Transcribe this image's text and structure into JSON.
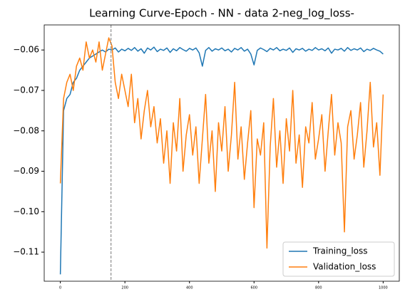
{
  "chart_data": {
    "type": "line",
    "title": "Learning Curve-Epoch - NN - data 2-neg_log_loss-",
    "x": [
      0,
      10,
      20,
      30,
      40,
      50,
      60,
      70,
      80,
      90,
      100,
      110,
      120,
      130,
      140,
      150,
      160,
      170,
      180,
      190,
      200,
      210,
      220,
      230,
      240,
      250,
      260,
      270,
      280,
      290,
      300,
      310,
      320,
      330,
      340,
      350,
      360,
      370,
      380,
      390,
      400,
      410,
      420,
      430,
      440,
      450,
      460,
      470,
      480,
      490,
      500,
      510,
      520,
      530,
      540,
      550,
      560,
      570,
      580,
      590,
      600,
      610,
      620,
      630,
      640,
      650,
      660,
      670,
      680,
      690,
      700,
      710,
      720,
      730,
      740,
      750,
      760,
      770,
      780,
      790,
      800,
      810,
      820,
      830,
      840,
      850,
      860,
      870,
      880,
      890,
      900,
      910,
      920,
      930,
      940,
      950,
      960,
      970,
      980,
      990,
      1000
    ],
    "series": [
      {
        "name": "Training_loss",
        "color": "#1f77b4",
        "values": [
          -0.1155,
          -0.075,
          -0.072,
          -0.071,
          -0.068,
          -0.067,
          -0.065,
          -0.064,
          -0.063,
          -0.062,
          -0.0615,
          -0.061,
          -0.0605,
          -0.06,
          -0.0605,
          -0.0598,
          -0.06,
          -0.0595,
          -0.0605,
          -0.0598,
          -0.0602,
          -0.0596,
          -0.0601,
          -0.0594,
          -0.0603,
          -0.0597,
          -0.0608,
          -0.0595,
          -0.06,
          -0.0593,
          -0.0604,
          -0.0598,
          -0.0601,
          -0.0595,
          -0.0606,
          -0.0597,
          -0.0602,
          -0.0594,
          -0.0599,
          -0.0603,
          -0.0596,
          -0.06,
          -0.0595,
          -0.0607,
          -0.064,
          -0.0601,
          -0.0594,
          -0.0603,
          -0.0597,
          -0.06,
          -0.0595,
          -0.0602,
          -0.0598,
          -0.0605,
          -0.0596,
          -0.06,
          -0.0594,
          -0.0603,
          -0.0598,
          -0.061,
          -0.0637,
          -0.0601,
          -0.0595,
          -0.0599,
          -0.0604,
          -0.0596,
          -0.06,
          -0.0594,
          -0.0602,
          -0.0598,
          -0.0601,
          -0.0595,
          -0.0606,
          -0.0597,
          -0.06,
          -0.0596,
          -0.0603,
          -0.0598,
          -0.0601,
          -0.0594,
          -0.06,
          -0.0597,
          -0.0602,
          -0.0595,
          -0.0608,
          -0.0598,
          -0.06,
          -0.0596,
          -0.0603,
          -0.0594,
          -0.0601,
          -0.0597,
          -0.06,
          -0.0595,
          -0.0604,
          -0.0598,
          -0.0601,
          -0.0596,
          -0.06,
          -0.0603,
          -0.061
        ]
      },
      {
        "name": "Validation_loss",
        "color": "#ff7f0e",
        "values": [
          -0.093,
          -0.072,
          -0.068,
          -0.066,
          -0.07,
          -0.064,
          -0.062,
          -0.065,
          -0.058,
          -0.062,
          -0.06,
          -0.063,
          -0.058,
          -0.065,
          -0.061,
          -0.057,
          -0.059,
          -0.068,
          -0.072,
          -0.066,
          -0.07,
          -0.074,
          -0.066,
          -0.078,
          -0.072,
          -0.082,
          -0.075,
          -0.07,
          -0.079,
          -0.074,
          -0.083,
          -0.077,
          -0.088,
          -0.08,
          -0.093,
          -0.078,
          -0.085,
          -0.072,
          -0.09,
          -0.081,
          -0.076,
          -0.086,
          -0.079,
          -0.093,
          -0.082,
          -0.071,
          -0.088,
          -0.08,
          -0.095,
          -0.078,
          -0.085,
          -0.074,
          -0.09,
          -0.081,
          -0.068,
          -0.087,
          -0.079,
          -0.092,
          -0.083,
          -0.075,
          -0.099,
          -0.082,
          -0.086,
          -0.078,
          -0.109,
          -0.084,
          -0.072,
          -0.089,
          -0.08,
          -0.093,
          -0.077,
          -0.085,
          -0.07,
          -0.088,
          -0.081,
          -0.094,
          -0.079,
          -0.083,
          -0.073,
          -0.087,
          -0.082,
          -0.076,
          -0.09,
          -0.08,
          -0.071,
          -0.086,
          -0.078,
          -0.083,
          -0.105,
          -0.079,
          -0.075,
          -0.087,
          -0.081,
          -0.073,
          -0.089,
          -0.08,
          -0.068,
          -0.084,
          -0.078,
          -0.091,
          -0.071
        ]
      }
    ],
    "xlim": [
      -50,
      1050
    ],
    "xticks": [
      0,
      200,
      400,
      600,
      800,
      1000
    ],
    "ylim": [
      -0.1172,
      -0.0538
    ],
    "yticks": [
      {
        "value": -0.06,
        "label": "−0.06"
      },
      {
        "value": -0.07,
        "label": "−0.07"
      },
      {
        "value": -0.08,
        "label": "−0.08"
      },
      {
        "value": -0.09,
        "label": "−0.09"
      },
      {
        "value": -0.1,
        "label": "−0.10"
      },
      {
        "value": -0.11,
        "label": "−0.11"
      }
    ],
    "vline_x": 157,
    "legend": "lower right"
  }
}
